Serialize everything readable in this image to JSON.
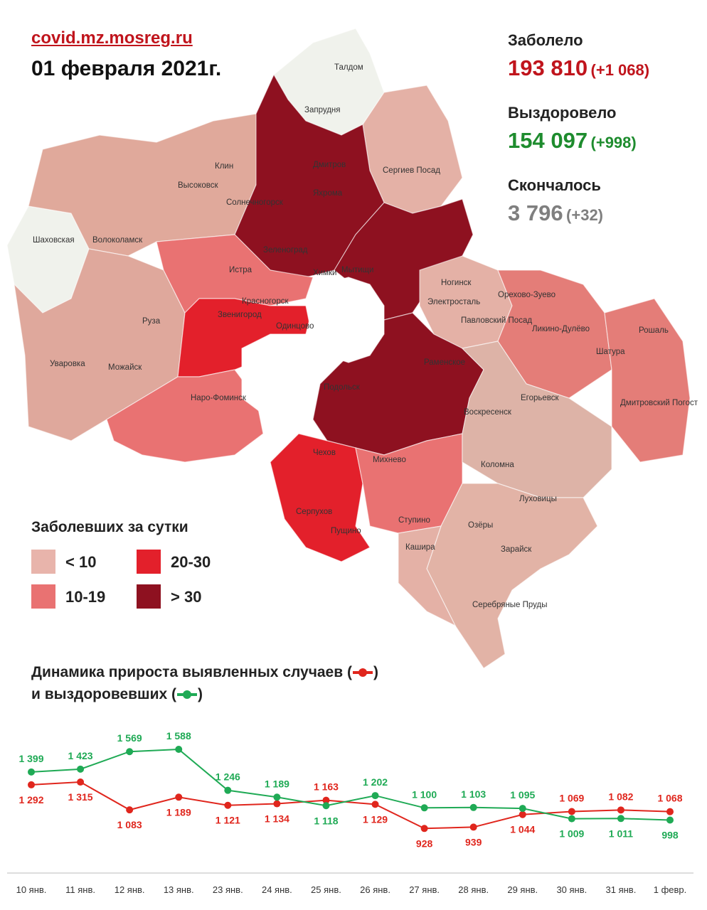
{
  "header": {
    "site": "covid.mz.mosreg.ru",
    "date": "01 февраля 2021г."
  },
  "stats": {
    "sick": {
      "label": "Заболело",
      "value": "193 810",
      "delta": "(+1 068)",
      "color": "#c0141c"
    },
    "recovered": {
      "label": "Выздоровело",
      "value": "154 097",
      "delta": "(+998)",
      "color": "#1e8c2e"
    },
    "died": {
      "label": "Скончалось",
      "value": "3 796",
      "delta": "(+32)",
      "color": "#7f7f7f"
    }
  },
  "map": {
    "district_labels": [
      "Талдом",
      "Запрудня",
      "Дмитров",
      "Яхрома",
      "Клин",
      "Высоковск",
      "Сергиев Посад",
      "Солнечногорск",
      "Зеленоград",
      "Шаховская",
      "Волоколамск",
      "Истра",
      "Химки",
      "Мытищи",
      "Ногинск",
      "Электросталь",
      "Орехово-Зуево",
      "Красногорск",
      "Павловский Посад",
      "Звенигород",
      "Одинцово",
      "Ликино-Дулёво",
      "Рошаль",
      "Руза",
      "Шатура",
      "Раменское",
      "Уваровка",
      "Можайск",
      "Подольск",
      "Егорьевск",
      "Наро-Фоминск",
      "Воскресенск",
      "Дмитровский Погост",
      "Чехов",
      "Михнево",
      "Коломна",
      "Луховицы",
      "Серпухов",
      "Ступино",
      "Озёры",
      "Пущино",
      "Кашира",
      "Зарайск",
      "Серебряные Пруды"
    ],
    "legend_title": "Заболевших за сутки",
    "legend": [
      {
        "label": "< 10",
        "color": "#e8b4ab"
      },
      {
        "label": "20-30",
        "color": "#e3202b"
      },
      {
        "label": "10-19",
        "color": "#e97272"
      },
      {
        "label": "> 30",
        "color": "#8e1120"
      }
    ]
  },
  "dynamics": {
    "title_line1": "Динамика прироста выявленных случаев (",
    "title_line2": "и выздоровевших (",
    "close_paren": ")"
  },
  "chart_data": {
    "type": "line",
    "categories": [
      "10 янв.",
      "11 янв.",
      "12 янв.",
      "13 янв.",
      "23 янв.",
      "24 янв.",
      "25 янв.",
      "26 янв.",
      "27 янв.",
      "28 янв.",
      "29 янв.",
      "30 янв.",
      "31 янв.",
      "1 февр."
    ],
    "series": [
      {
        "values": [
          1292,
          1315,
          1083,
          1189,
          1121,
          1134,
          1163,
          1129,
          928,
          939,
          1044,
          1069,
          1082,
          1068
        ],
        "labels": [
          "1 292",
          "1 315",
          "1 083",
          "1 189",
          "1 121",
          "1 134",
          "1 163",
          "1 129",
          "928",
          "939",
          "1 044",
          "1 069",
          "1 082",
          "1 068"
        ],
        "color": "#e0261d"
      },
      {
        "values": [
          1399,
          1423,
          1569,
          1588,
          1246,
          1189,
          1118,
          1202,
          1100,
          1103,
          1095,
          1009,
          1011,
          998
        ],
        "labels": [
          "1 399",
          "1 423",
          "1 569",
          "1 588",
          "1 246",
          "1 189",
          "1 118",
          "1 202",
          "1 100",
          "1 103",
          "1 095",
          "1 009",
          "1 011",
          "998"
        ],
        "color": "#1faa55"
      }
    ]
  }
}
